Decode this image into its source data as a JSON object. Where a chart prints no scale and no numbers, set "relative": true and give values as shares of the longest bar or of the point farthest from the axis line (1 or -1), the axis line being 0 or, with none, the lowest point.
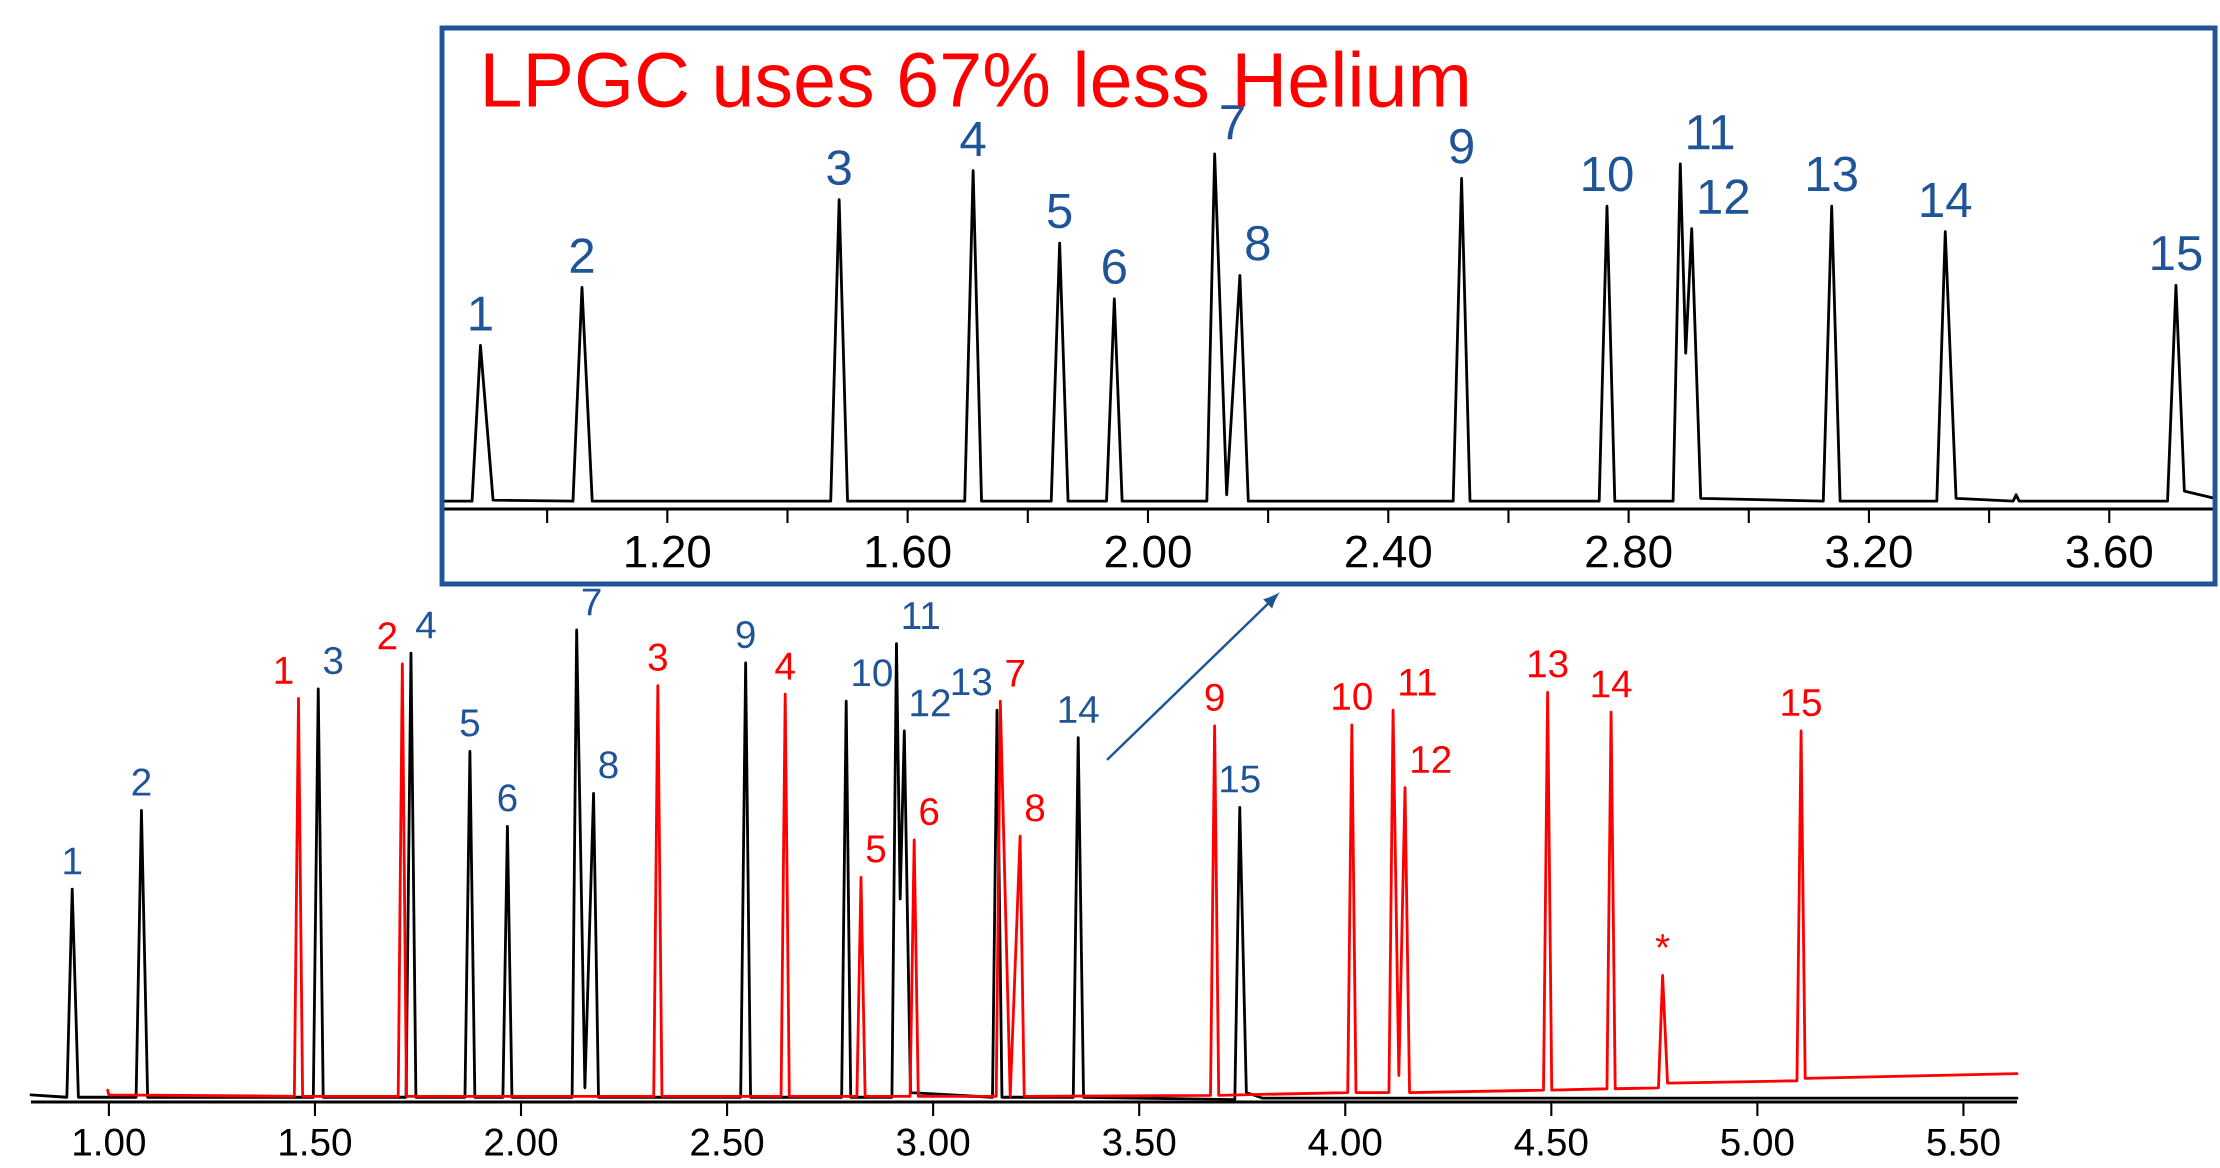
{
  "chart_data": [
    {
      "type": "line",
      "relative": true,
      "title": "LPGC uses 67% less Helium",
      "xlim": [
        0.825,
        3.776
      ],
      "xticks": [
        {
          "value": 1.0,
          "label": null
        },
        {
          "value": 1.2,
          "label": "1.20"
        },
        {
          "value": 1.4,
          "label": null
        },
        {
          "value": 1.6,
          "label": "1.60"
        },
        {
          "value": 1.8,
          "label": null
        },
        {
          "value": 2.0,
          "label": "2.00"
        },
        {
          "value": 2.2,
          "label": null
        },
        {
          "value": 2.4,
          "label": "2.40"
        },
        {
          "value": 2.6,
          "label": null
        },
        {
          "value": 2.8,
          "label": "2.80"
        },
        {
          "value": 3.0,
          "label": null
        },
        {
          "value": 3.2,
          "label": "3.20"
        },
        {
          "value": 3.4,
          "label": null
        },
        {
          "value": 3.6,
          "label": "3.60"
        }
      ],
      "series": [
        {
          "color": "#000000",
          "x": [
            0.825,
            0.875,
            0.889,
            0.91,
            1.043,
            1.058,
            1.075,
            1.472,
            1.486,
            1.5,
            1.695,
            1.709,
            1.723,
            1.839,
            1.853,
            1.867,
            1.931,
            1.944,
            1.957,
            2.098,
            2.111,
            2.131,
            2.153,
            2.167,
            2.508,
            2.522,
            2.536,
            2.751,
            2.764,
            2.777,
            2.874,
            2.886,
            2.895,
            2.905,
            2.92,
            3.124,
            3.138,
            3.152,
            3.313,
            3.327,
            3.345,
            3.44,
            3.445,
            3.45,
            3.697,
            3.711,
            3.725,
            3.776
          ],
          "values": [
            0.022,
            0.022,
            0.461,
            0.025,
            0.022,
            0.624,
            0.022,
            0.022,
            0.871,
            0.022,
            0.022,
            0.953,
            0.022,
            0.022,
            0.749,
            0.022,
            0.022,
            0.592,
            0.022,
            0.022,
            1,
            0.04,
            0.658,
            0.022,
            0.022,
            0.931,
            0.022,
            0.022,
            0.853,
            0.022,
            0.022,
            0.972,
            0.439,
            0.79,
            0.03,
            0.022,
            0.853,
            0.022,
            0.022,
            0.781,
            0.03,
            0.022,
            0.04,
            0.022,
            0.022,
            0.63,
            0.05,
            0.03
          ]
        }
      ],
      "annotations": [
        {
          "text": "1",
          "x": 0.889,
          "y": 0.461
        },
        {
          "text": "2",
          "x": 1.058,
          "y": 0.624
        },
        {
          "text": "3",
          "x": 1.486,
          "y": 0.871
        },
        {
          "text": "4",
          "x": 1.709,
          "y": 0.953
        },
        {
          "text": "5",
          "x": 1.853,
          "y": 0.749
        },
        {
          "text": "6",
          "x": 1.944,
          "y": 0.592
        },
        {
          "text": "7",
          "x": 2.111,
          "y": 1
        },
        {
          "text": "8",
          "x": 2.153,
          "y": 0.658
        },
        {
          "text": "9",
          "x": 2.522,
          "y": 0.931
        },
        {
          "text": "10",
          "x": 2.764,
          "y": 0.853
        },
        {
          "text": "11",
          "x": 2.886,
          "y": 0.972
        },
        {
          "text": "12",
          "x": 2.905,
          "y": 0.79
        },
        {
          "text": "13",
          "x": 3.138,
          "y": 0.853
        },
        {
          "text": "14",
          "x": 3.327,
          "y": 0.781
        },
        {
          "text": "15",
          "x": 3.711,
          "y": 0.63
        }
      ]
    },
    {
      "type": "line",
      "relative": true,
      "xlim": [
        0.811,
        5.63
      ],
      "xticks": [
        {
          "value": 1.0,
          "label": "1.00"
        },
        {
          "value": 1.5,
          "label": "1.50"
        },
        {
          "value": 2.0,
          "label": "2.00"
        },
        {
          "value": 2.5,
          "label": "2.50"
        },
        {
          "value": 3.0,
          "label": "3.00"
        },
        {
          "value": 3.5,
          "label": "3.50"
        },
        {
          "value": 4.0,
          "label": "4.00"
        },
        {
          "value": 4.5,
          "label": "4.50"
        },
        {
          "value": 5.0,
          "label": "5.00"
        },
        {
          "value": 5.5,
          "label": "5.50"
        }
      ],
      "series": [
        {
          "color": "#000000",
          "x": [
            0.811,
            0.898,
            0.911,
            0.926,
            1.066,
            1.079,
            1.094,
            1.496,
            1.508,
            1.52,
            1.721,
            1.733,
            1.745,
            1.864,
            1.876,
            1.888,
            1.956,
            1.967,
            1.978,
            2.124,
            2.135,
            2.155,
            2.176,
            2.188,
            2.533,
            2.545,
            2.557,
            2.778,
            2.789,
            2.8,
            2.9,
            2.911,
            2.92,
            2.93,
            2.945,
            3.144,
            3.155,
            3.167,
            3.34,
            3.352,
            3.365,
            3.732,
            3.744,
            3.76,
            3.8,
            5.63
          ],
          "values": [
            0.015,
            0.01,
            0.451,
            0.01,
            0.01,
            0.618,
            0.01,
            0.01,
            0.875,
            0.01,
            0.01,
            0.951,
            0.01,
            0.01,
            0.743,
            0.01,
            0.01,
            0.584,
            0.01,
            0.01,
            1,
            0.03,
            0.654,
            0.01,
            0.01,
            0.93,
            0.01,
            0.01,
            0.849,
            0.01,
            0.01,
            0.971,
            0.43,
            0.786,
            0.02,
            0.01,
            0.83,
            0.01,
            0.01,
            0.772,
            0.01,
            0.005,
            0.624,
            0.02,
            0.008,
            0.008
          ]
        },
        {
          "color": "#ff0000",
          "x": [
            0.997,
            1.0,
            1.45,
            1.46,
            1.47,
            1.702,
            1.712,
            1.722,
            2.322,
            2.332,
            2.342,
            2.631,
            2.641,
            2.651,
            2.815,
            2.825,
            2.835,
            2.944,
            2.954,
            2.964,
            3.153,
            3.163,
            3.187,
            3.211,
            3.221,
            3.673,
            3.683,
            3.693,
            4.006,
            4.016,
            4.026,
            4.106,
            4.116,
            4.13,
            4.145,
            4.156,
            4.481,
            4.491,
            4.501,
            4.635,
            4.645,
            4.655,
            4.76,
            4.77,
            4.782,
            5.096,
            5.106,
            5.116,
            5.63
          ],
          "values": [
            0.025,
            0.015,
            0.012,
            0.855,
            0.012,
            0.012,
            0.928,
            0.012,
            0.012,
            0.882,
            0.012,
            0.012,
            0.864,
            0.012,
            0.012,
            0.476,
            0.012,
            0.012,
            0.555,
            0.012,
            0.012,
            0.849,
            0.012,
            0.563,
            0.012,
            0.014,
            0.797,
            0.014,
            0.02,
            0.799,
            0.02,
            0.02,
            0.83,
            0.056,
            0.666,
            0.02,
            0.025,
            0.868,
            0.025,
            0.028,
            0.826,
            0.028,
            0.03,
            0.268,
            0.04,
            0.045,
            0.786,
            0.05,
            0.06
          ]
        }
      ],
      "annotations": [
        {
          "text": "1",
          "x": 0.911,
          "y": 0.451
        },
        {
          "text": "2",
          "x": 1.079,
          "y": 0.618
        },
        {
          "text": "3",
          "x": 1.508,
          "y": 0.875
        },
        {
          "text": "4",
          "x": 1.733,
          "y": 0.951
        },
        {
          "text": "5",
          "x": 1.876,
          "y": 0.743
        },
        {
          "text": "6",
          "x": 1.967,
          "y": 0.584
        },
        {
          "text": "7",
          "x": 2.135,
          "y": 1
        },
        {
          "text": "8",
          "x": 2.176,
          "y": 0.654
        },
        {
          "text": "9",
          "x": 2.545,
          "y": 0.93
        },
        {
          "text": "10",
          "x": 2.789,
          "y": 0.849
        },
        {
          "text": "11",
          "x": 2.911,
          "y": 0.971
        },
        {
          "text": "12",
          "x": 2.93,
          "y": 0.786
        },
        {
          "text": "13",
          "x": 3.155,
          "y": 0.83
        },
        {
          "text": "14",
          "x": 3.352,
          "y": 0.772
        },
        {
          "text": "15",
          "x": 3.744,
          "y": 0.624
        },
        {
          "text": "1",
          "x": 1.46,
          "y": 0.855
        },
        {
          "text": "2",
          "x": 1.712,
          "y": 0.928
        },
        {
          "text": "3",
          "x": 2.332,
          "y": 0.882
        },
        {
          "text": "4",
          "x": 2.641,
          "y": 0.864
        },
        {
          "text": "5",
          "x": 2.825,
          "y": 0.476
        },
        {
          "text": "6",
          "x": 2.954,
          "y": 0.555
        },
        {
          "text": "7",
          "x": 3.163,
          "y": 0.849
        },
        {
          "text": "8",
          "x": 3.211,
          "y": 0.563
        },
        {
          "text": "9",
          "x": 3.683,
          "y": 0.797
        },
        {
          "text": "10",
          "x": 4.016,
          "y": 0.799
        },
        {
          "text": "11",
          "x": 4.116,
          "y": 0.83
        },
        {
          "text": "12",
          "x": 4.145,
          "y": 0.666
        },
        {
          "text": "13",
          "x": 4.491,
          "y": 0.868
        },
        {
          "text": "14",
          "x": 4.645,
          "y": 0.826
        },
        {
          "text": "*",
          "x": 4.77,
          "y": 0.268
        },
        {
          "text": "15",
          "x": 5.106,
          "y": 0.786
        }
      ]
    }
  ]
}
